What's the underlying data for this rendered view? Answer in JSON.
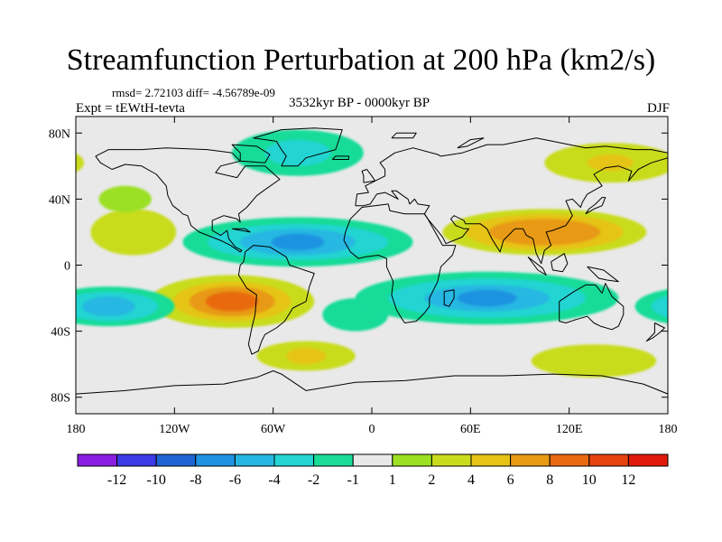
{
  "figure": {
    "title": "Streamfunction Perturbation at 200 hPa (km2/s)",
    "stats_label": "rmsd= 2.72103  diff= -4.56789e-09",
    "experiment_label": "Expt = tEWtH-tevta",
    "period_label": "3532kyr BP - 0000kyr BP",
    "season_label": "DJF"
  },
  "chart_data": {
    "type": "contour-map",
    "title": "Streamfunction Perturbation at 200 hPa (km2/s)",
    "variable": "Streamfunction perturbation",
    "units": "km2/s",
    "level": "200 hPa",
    "season": "DJF",
    "x_axis": {
      "range": [
        -180,
        180
      ],
      "ticks": [
        -180,
        -120,
        -60,
        0,
        60,
        120,
        180
      ],
      "tick_labels": [
        "180",
        "120W",
        "60W",
        "0",
        "60E",
        "120E",
        "180"
      ]
    },
    "y_axis": {
      "range": [
        -90,
        90
      ],
      "ticks": [
        80,
        40,
        0,
        -40,
        -80
      ],
      "tick_labels": [
        "80N",
        "40N",
        "0",
        "40S",
        "80S"
      ]
    },
    "colorbar": {
      "levels": [
        -12,
        -10,
        -8,
        -6,
        -4,
        -2,
        -1,
        1,
        2,
        4,
        6,
        8,
        10,
        12
      ],
      "labels": [
        "-12",
        "-10",
        "-8",
        "-6",
        "-4",
        "-2",
        "-1",
        "1",
        "2",
        "4",
        "6",
        "8",
        "10",
        "12"
      ],
      "colors": [
        "#8a1ee0",
        "#3a3ae6",
        "#1e64d2",
        "#1f93e0",
        "#25b7e2",
        "#22d4d2",
        "#19dc98",
        "#e9e9e9",
        "#9be021",
        "#c9dc1c",
        "#e6c416",
        "#e89a12",
        "#e86a10",
        "#e6420e",
        "#e01a0a"
      ]
    },
    "features": [
      {
        "name": "central-pacific-north-anomaly",
        "lon": -145,
        "lat": 20,
        "value": 3
      },
      {
        "name": "north-pacific-cyclone",
        "lon": -150,
        "lat": 40,
        "value": 2
      },
      {
        "name": "greenland-anomaly",
        "lon": -45,
        "lat": 68,
        "value": -3
      },
      {
        "name": "tropical-atlantic-trough",
        "lon": -45,
        "lat": 14,
        "value": -7
      },
      {
        "name": "southeast-pacific-high",
        "lon": -85,
        "lat": -22,
        "value": 10
      },
      {
        "name": "south-atlantic-low",
        "lon": -10,
        "lat": -30,
        "value": -3
      },
      {
        "name": "east-asia-high",
        "lon": 105,
        "lat": 20,
        "value": 7
      },
      {
        "name": "indian-ocean-trough",
        "lon": 70,
        "lat": -20,
        "value": -7
      },
      {
        "name": "south-pacific-trough",
        "lon": -160,
        "lat": -25,
        "value": -5
      },
      {
        "name": "southern-ocean-high-west",
        "lon": -40,
        "lat": -55,
        "value": 3
      },
      {
        "name": "southern-ocean-high-east",
        "lon": 135,
        "lat": -58,
        "value": 3
      },
      {
        "name": "north-pacific-east-anomaly",
        "lon": 145,
        "lat": 62,
        "value": 2
      }
    ]
  }
}
